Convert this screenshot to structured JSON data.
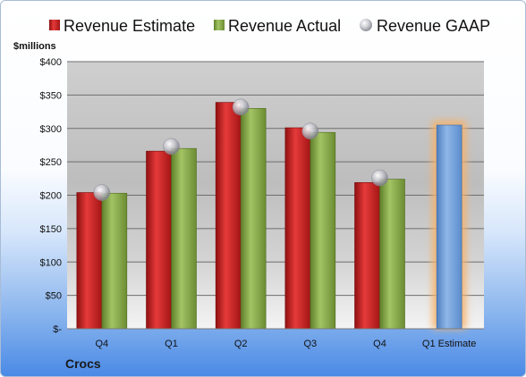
{
  "chart_data": {
    "type": "bar",
    "categories": [
      "Q4",
      "Q1",
      "Q2",
      "Q3",
      "Q4",
      "Q1 Estimate"
    ],
    "series": [
      {
        "name": "Revenue Estimate",
        "values": [
          204,
          266,
          339,
          301,
          219,
          null
        ],
        "color": "#d42a2a"
      },
      {
        "name": "Revenue Actual",
        "values": [
          203,
          270,
          330,
          294,
          224,
          null
        ],
        "color": "#8db04c"
      },
      {
        "name": "Revenue GAAP",
        "values": [
          204,
          273,
          332,
          296,
          226,
          null
        ],
        "color": "#b8b8c0",
        "marker": "circle"
      }
    ],
    "estimate": {
      "category": "Q1 Estimate",
      "value": 305,
      "color": "#6f9fd8",
      "glow": "#f6b26b"
    },
    "ylabel": "$millions",
    "ylim": [
      0,
      400
    ],
    "yticks": [
      0,
      50,
      100,
      150,
      200,
      250,
      300,
      350,
      400
    ],
    "ytick_labels": [
      "$-",
      "$50",
      "$100",
      "$150",
      "$200",
      "$250",
      "$300",
      "$350",
      "$400"
    ],
    "legend": "top",
    "grid": true
  },
  "company": "Crocs"
}
